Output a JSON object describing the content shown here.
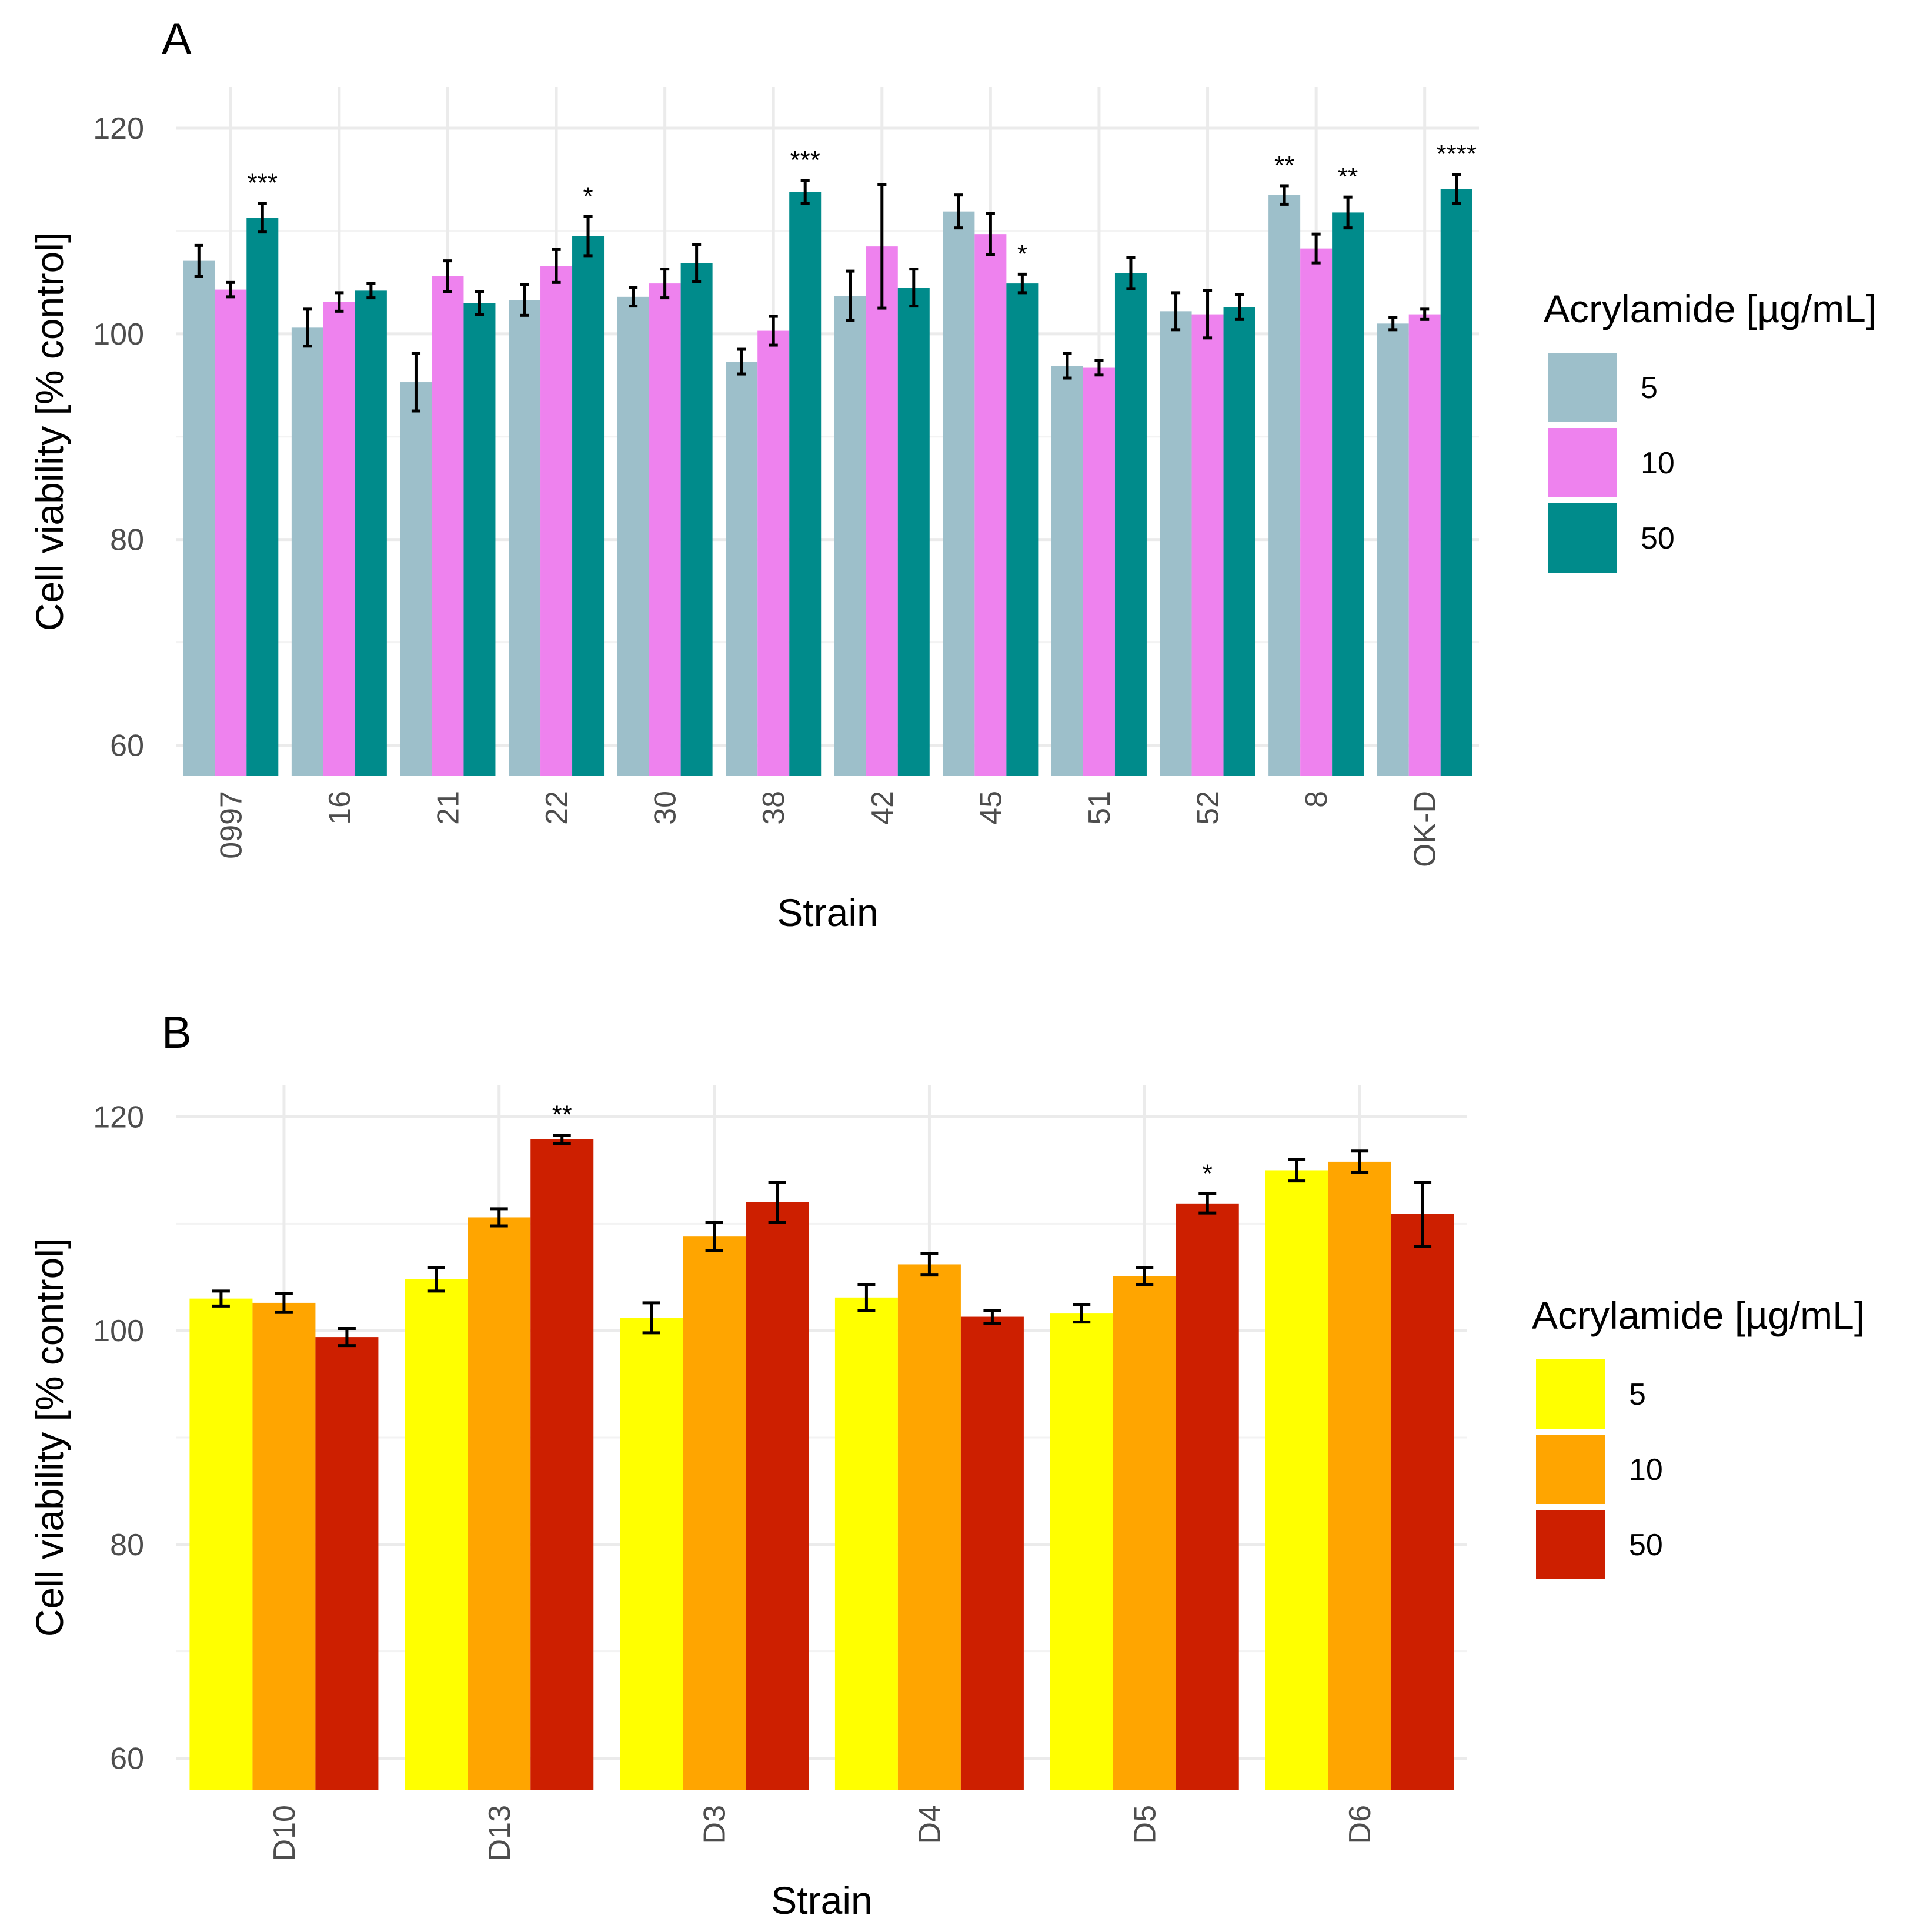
{
  "chart_data": [
    {
      "type": "bar",
      "panel": "A",
      "title": "",
      "xlabel": "Strain",
      "ylabel": "Cell viability [% control]",
      "ylim": [
        57,
        124
      ],
      "y_ticks": [
        60,
        80,
        100,
        120
      ],
      "grid": true,
      "legend": {
        "title": "Acrylamide [µg/mL]",
        "position": "right"
      },
      "categories": [
        "0997",
        "16",
        "21",
        "22",
        "30",
        "38",
        "42",
        "45",
        "51",
        "52",
        "8",
        "OK-D"
      ],
      "series": [
        {
          "name": "5",
          "color": "#9dbfca",
          "values": [
            107.1,
            100.6,
            95.3,
            103.3,
            103.6,
            97.3,
            103.7,
            111.9,
            96.9,
            102.2,
            113.5,
            101.0
          ],
          "errors": [
            1.5,
            1.8,
            2.8,
            1.5,
            0.9,
            1.2,
            2.4,
            1.6,
            1.2,
            1.8,
            0.9,
            0.6
          ],
          "sig": [
            "",
            "",
            "",
            "",
            "",
            "",
            "",
            "",
            "",
            "",
            "**",
            ""
          ]
        },
        {
          "name": "10",
          "color": "#ee82ee",
          "values": [
            104.3,
            103.1,
            105.6,
            106.6,
            104.9,
            100.3,
            108.5,
            109.7,
            96.7,
            101.9,
            108.3,
            101.9
          ],
          "errors": [
            0.7,
            0.9,
            1.5,
            1.6,
            1.4,
            1.4,
            6.0,
            2.0,
            0.7,
            2.3,
            1.4,
            0.5
          ],
          "sig": [
            "",
            "",
            "",
            "",
            "",
            "",
            "",
            "",
            "",
            "",
            "",
            ""
          ]
        },
        {
          "name": "50",
          "color": "#008b8b",
          "values": [
            111.3,
            104.2,
            103.0,
            109.5,
            106.9,
            113.8,
            104.5,
            104.9,
            105.9,
            102.6,
            111.8,
            114.1
          ],
          "errors": [
            1.4,
            0.7,
            1.1,
            1.9,
            1.8,
            1.1,
            1.8,
            0.9,
            1.5,
            1.2,
            1.5,
            1.4
          ],
          "sig": [
            "***",
            "",
            "",
            "*",
            "",
            "***",
            "",
            "*",
            "",
            "",
            "**",
            "****"
          ]
        }
      ]
    },
    {
      "type": "bar",
      "panel": "B",
      "title": "",
      "xlabel": "Strain",
      "ylabel": "Cell viability [% control]",
      "ylim": [
        57,
        123
      ],
      "y_ticks": [
        60,
        80,
        100,
        120
      ],
      "grid": true,
      "legend": {
        "title": "Acrylamide [µg/mL]",
        "position": "right"
      },
      "categories": [
        "D10",
        "D13",
        "D3",
        "D4",
        "D5",
        "D6"
      ],
      "series": [
        {
          "name": "5",
          "color": "#ffff00",
          "values": [
            103.0,
            104.8,
            101.2,
            103.1,
            101.6,
            115.0
          ],
          "errors": [
            0.7,
            1.1,
            1.4,
            1.2,
            0.8,
            1.0
          ],
          "sig": [
            "",
            "",
            "",
            "",
            "",
            ""
          ]
        },
        {
          "name": "10",
          "color": "#ffa500",
          "values": [
            102.6,
            110.6,
            108.8,
            106.2,
            105.1,
            115.8
          ],
          "errors": [
            0.9,
            0.8,
            1.3,
            1.0,
            0.8,
            1.0
          ],
          "sig": [
            "",
            "",
            "",
            "",
            "",
            ""
          ]
        },
        {
          "name": "50",
          "color": "#cd1f00",
          "values": [
            99.4,
            117.9,
            112.0,
            101.3,
            111.9,
            110.9
          ],
          "errors": [
            0.8,
            0.4,
            1.9,
            0.6,
            0.9,
            3.0
          ],
          "sig": [
            "",
            "**",
            "",
            "",
            "*",
            ""
          ]
        }
      ]
    }
  ]
}
